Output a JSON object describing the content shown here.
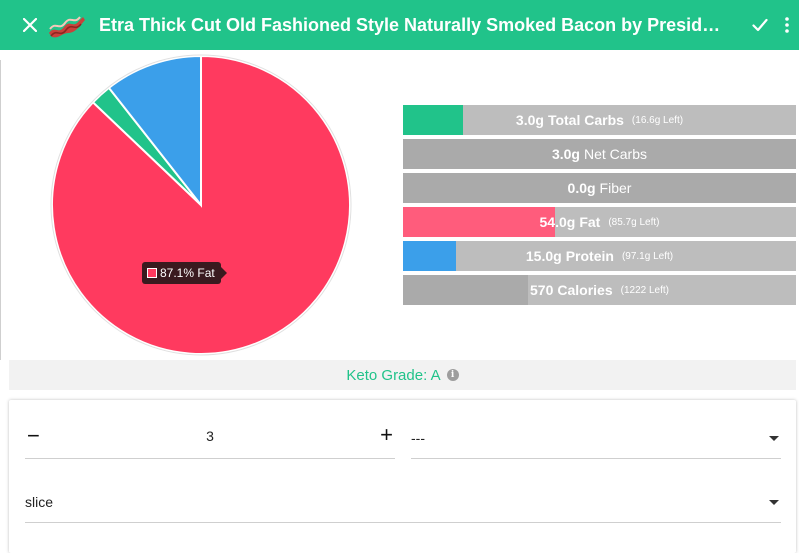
{
  "header": {
    "title": "Etra Thick Cut Old Fashioned Style Naturally Smoked Bacon by President's ...",
    "close_icon": "close-icon",
    "check_icon": "check-icon",
    "more_icon": "more-vert-icon",
    "food_icon": "bacon-icon",
    "background": "#21c38a"
  },
  "chart_data": {
    "type": "pie",
    "slices": [
      {
        "label": "Fat",
        "percent": 87.1,
        "color": "#ff3a5f"
      },
      {
        "label": "Carbs",
        "percent": 2.3,
        "color": "#21c38a"
      },
      {
        "label": "Protein",
        "percent": 10.6,
        "color": "#3b9fea"
      }
    ],
    "tooltip": {
      "percent_text": "87.1%",
      "label": "Fat"
    }
  },
  "macros": [
    {
      "value": "3.0g",
      "label": "Total Carbs",
      "left": "(16.6g Left)",
      "fraction": 0.153,
      "color": "#21c38a"
    },
    {
      "value": "3.0g",
      "label": "Net Carbs",
      "left": "",
      "fraction": 0,
      "color": "#aaaaaa"
    },
    {
      "value": "0.0g",
      "label": "Fiber",
      "left": "",
      "fraction": 0,
      "color": "#aaaaaa"
    },
    {
      "value": "54.0g",
      "label": "Fat",
      "left": "(85.7g Left)",
      "fraction": 0.387,
      "color": "#ff5c7c"
    },
    {
      "value": "15.0g",
      "label": "Protein",
      "left": "(97.1g Left)",
      "fraction": 0.134,
      "color": "#3b9fea"
    },
    {
      "value": "570",
      "label": "Calories",
      "left": "(1222 Left)",
      "fraction": 0.318,
      "color": "#aaaaaa"
    }
  ],
  "grade": {
    "text": "Keto Grade: A",
    "info_icon": "info-icon",
    "info_glyph": "i"
  },
  "form": {
    "minus_glyph": "−",
    "plus_glyph": "+",
    "quantity": "3",
    "serving_select": "---",
    "unit_select": "slice"
  }
}
